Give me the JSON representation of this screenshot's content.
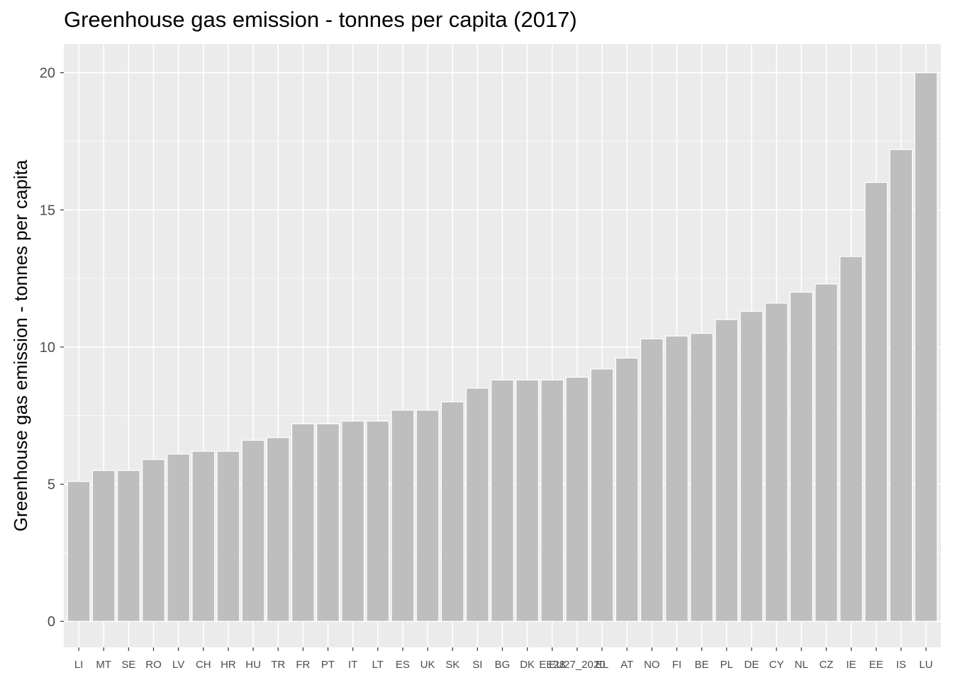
{
  "chart_data": {
    "type": "bar",
    "title": "Greenhouse gas emission - tonnes per capita (2017)",
    "xlabel": "",
    "ylabel": "Greenhouse gas emission - tonnes per capita",
    "categories": [
      "LI",
      "MT",
      "SE",
      "RO",
      "LV",
      "CH",
      "HR",
      "HU",
      "TR",
      "FR",
      "PT",
      "IT",
      "LT",
      "ES",
      "UK",
      "SK",
      "SI",
      "BG",
      "DK",
      "EE28",
      "EU27_2020",
      "EL",
      "AT",
      "NO",
      "FI",
      "BE",
      "PL",
      "DE",
      "CY",
      "NL",
      "CZ",
      "IE",
      "EE",
      "IS",
      "LU"
    ],
    "values": [
      5.1,
      5.5,
      5.5,
      5.9,
      6.1,
      6.2,
      6.2,
      6.6,
      6.7,
      7.2,
      7.2,
      7.3,
      7.3,
      7.7,
      7.7,
      8.0,
      8.5,
      8.8,
      8.8,
      8.8,
      8.9,
      9.2,
      9.6,
      10.3,
      10.4,
      10.5,
      11.0,
      11.3,
      11.6,
      12.0,
      12.3,
      13.3,
      16.0,
      17.2,
      20.0
    ],
    "yticks": [
      0,
      5,
      10,
      15,
      20
    ],
    "ylim": [
      -0.95,
      21.05
    ],
    "grid": true,
    "legend": "none",
    "colors": {
      "panel": "#EBEBEB",
      "bar": "#BEBEBE",
      "grid": "#FFFFFF",
      "tick_text": "#4D4D4D"
    }
  }
}
